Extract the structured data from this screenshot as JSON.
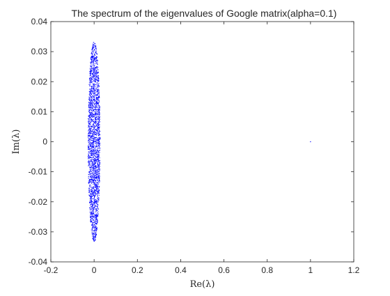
{
  "chart_data": {
    "type": "scatter",
    "title": "The spectrum of the eigenvalues of Google matrix(alpha=0.1)",
    "xlabel": "Re(λ)",
    "ylabel": "Im(λ)",
    "xlim": [
      -0.2,
      1.2
    ],
    "ylim": [
      -0.04,
      0.04
    ],
    "xticks": [
      -0.2,
      0,
      0.2,
      0.4,
      0.6,
      0.8,
      1,
      1.2
    ],
    "xtick_labels": [
      "-0.2",
      "0",
      "0.2",
      "0.4",
      "0.6",
      "0.8",
      "1",
      "1.2"
    ],
    "yticks": [
      -0.04,
      -0.03,
      -0.02,
      -0.01,
      0,
      0.01,
      0.02,
      0.03,
      0.04
    ],
    "ytick_labels": [
      "-0.04",
      "-0.03",
      "-0.02",
      "-0.01",
      "0",
      "0.01",
      "0.02",
      "0.03",
      "0.04"
    ],
    "grid": false,
    "marker_color": "#0000ff",
    "series": [
      {
        "cluster": {
          "center": [
            0,
            0
          ],
          "re_halfwidth": 0.028,
          "im_halfwidth": 0.0335,
          "approx_point_count": 2500
        },
        "points": [
          [
            1,
            0
          ]
        ]
      }
    ]
  },
  "colors": {
    "axes": "#262626",
    "background": "#ffffff",
    "points": "#0000ff"
  }
}
